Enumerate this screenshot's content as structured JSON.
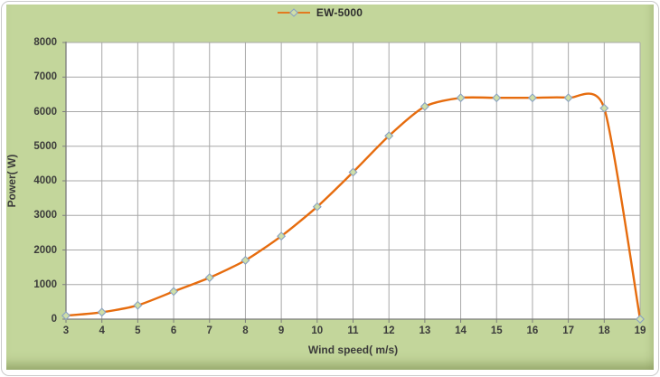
{
  "chart_data": {
    "type": "line",
    "title": "",
    "xlabel": "Wind speed( m/s)",
    "ylabel": "Power( W)",
    "xlim": [
      3,
      19
    ],
    "ylim": [
      0,
      8000
    ],
    "x_ticks": [
      3,
      4,
      5,
      6,
      7,
      8,
      9,
      10,
      11,
      12,
      13,
      14,
      15,
      16,
      17,
      18,
      19
    ],
    "y_ticks": [
      0,
      1000,
      2000,
      3000,
      4000,
      5000,
      6000,
      7000,
      8000
    ],
    "grid": "both",
    "legend_position": "top-center",
    "series": [
      {
        "name": "EW-5000",
        "marker": "diamond",
        "smooth": true,
        "x": [
          3,
          4,
          5,
          6,
          7,
          8,
          9,
          10,
          11,
          12,
          13,
          14,
          15,
          16,
          17,
          18,
          19
        ],
        "values": [
          100,
          200,
          400,
          800,
          1200,
          1700,
          2400,
          3250,
          4250,
          5300,
          6150,
          6400,
          6400,
          6400,
          6400,
          6100,
          0
        ]
      }
    ]
  },
  "colors": {
    "chart_bg": "#c3d69b",
    "plot_bg": "#ffffff",
    "gridline": "#a8a8a8",
    "axis": "#7c7c7c",
    "text": "#3b3b3b",
    "line": "#e66c0e",
    "marker_fill": "#cfdfa8",
    "marker_stroke": "#8aa2c2"
  }
}
